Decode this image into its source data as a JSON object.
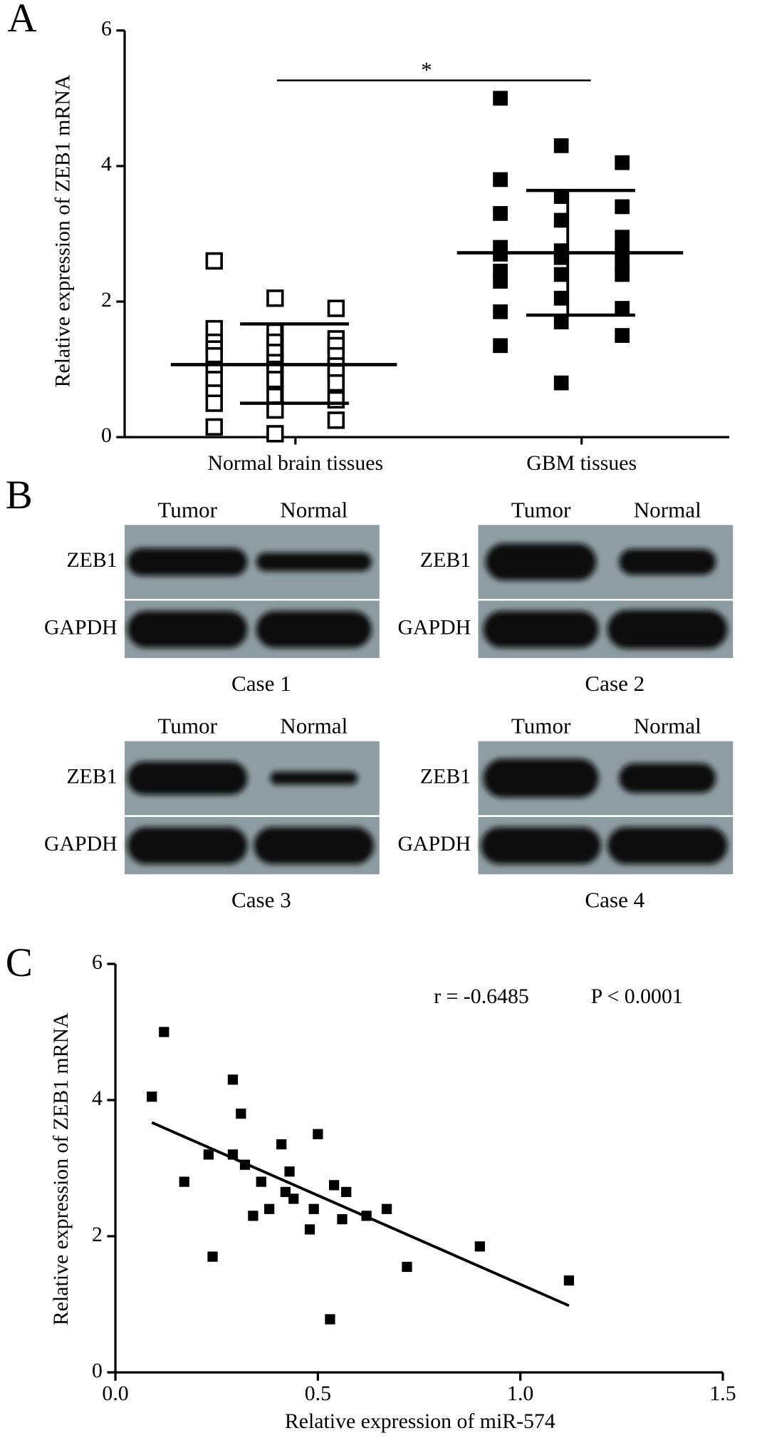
{
  "chart_data": [
    {
      "type": "dot_plot",
      "panel_label": "A",
      "ylabel": "Relative expression of ZEB1 mRNA",
      "ylim": [
        0,
        6
      ],
      "yticks": [
        0,
        2,
        4,
        6
      ],
      "annotation": "*",
      "groups": [
        {
          "category": "Normal brain tissues",
          "marker": "open-square",
          "values": [
            2.6,
            2.05,
            1.9,
            1.6,
            1.55,
            1.45,
            1.4,
            1.4,
            1.35,
            1.3,
            1.25,
            1.2,
            1.2,
            1.1,
            1.05,
            1.0,
            1.0,
            0.95,
            0.85,
            0.85,
            0.8,
            0.65,
            0.6,
            0.55,
            0.5,
            0.4,
            0.25,
            0.15,
            0.05
          ],
          "mean": 1.07,
          "sd_low": 0.5,
          "sd_high": 1.67
        },
        {
          "category": "GBM tissues",
          "marker": "filled-square",
          "values": [
            5.0,
            4.3,
            4.05,
            3.8,
            3.55,
            3.4,
            3.3,
            3.2,
            2.95,
            2.8,
            2.75,
            2.75,
            2.7,
            2.65,
            2.55,
            2.45,
            2.4,
            2.4,
            2.3,
            2.05,
            1.9,
            1.85,
            1.7,
            1.5,
            1.35,
            0.8
          ],
          "mean": 2.72,
          "sd_low": 1.8,
          "sd_high": 3.64
        }
      ]
    },
    {
      "type": "scatter",
      "panel_label": "C",
      "xlabel": "Relative expression of miR-574",
      "ylabel": "Relative expression of ZEB1 mRNA",
      "xlim": [
        0,
        1.5
      ],
      "xticks": [
        {
          "value": 0,
          "label": "0.0"
        },
        0.5,
        {
          "value": 1,
          "label": "1.0"
        },
        1.5
      ],
      "ylim": [
        0,
        6
      ],
      "yticks": [
        0,
        2,
        4,
        6
      ],
      "annotations": [
        "r = -0.6485",
        "P < 0.0001"
      ],
      "x": [
        0.09,
        0.12,
        0.17,
        0.23,
        0.24,
        0.29,
        0.29,
        0.31,
        0.32,
        0.34,
        0.36,
        0.38,
        0.41,
        0.42,
        0.43,
        0.44,
        0.48,
        0.49,
        0.5,
        0.53,
        0.54,
        0.56,
        0.57,
        0.62,
        0.67,
        0.72,
        0.9,
        1.12
      ],
      "y": [
        4.05,
        5.0,
        2.8,
        3.2,
        1.7,
        4.3,
        3.2,
        3.8,
        3.05,
        2.3,
        2.8,
        2.4,
        3.35,
        2.65,
        2.95,
        2.55,
        2.1,
        2.4,
        3.5,
        0.78,
        2.75,
        2.25,
        2.65,
        2.3,
        2.4,
        1.55,
        1.85,
        1.35
      ],
      "fit_line": {
        "x": [
          0.09,
          1.12
        ],
        "y": [
          3.67,
          0.98
        ]
      }
    }
  ],
  "blot_panel": {
    "panel_label": "B",
    "cases": [
      {
        "caption": "Case 1",
        "columns": [
          "Tumor",
          "Normal"
        ],
        "rows": [
          "ZEB1",
          "GAPDH"
        ]
      },
      {
        "caption": "Case 2",
        "columns": [
          "Tumor",
          "Normal"
        ],
        "rows": [
          "ZEB1",
          "GAPDH"
        ]
      },
      {
        "caption": "Case 3",
        "columns": [
          "Tumor",
          "Normal"
        ],
        "rows": [
          "ZEB1",
          "GAPDH"
        ]
      },
      {
        "caption": "Case 4",
        "columns": [
          "Tumor",
          "Normal"
        ],
        "rows": [
          "ZEB1",
          "GAPDH"
        ]
      }
    ]
  }
}
